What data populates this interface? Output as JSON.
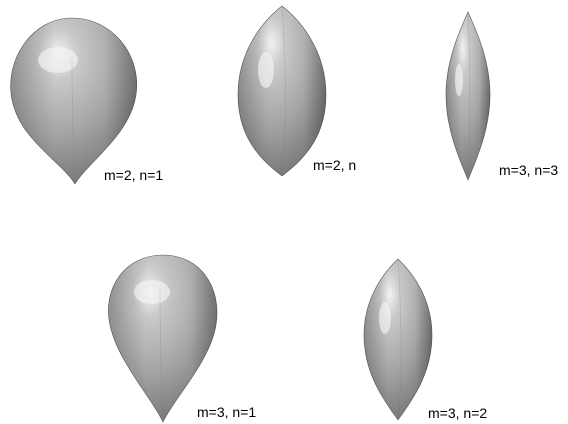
{
  "shading": {
    "highlight": "#f2f2f2",
    "light": "#c9c9c9",
    "mid": "#a6a6a6",
    "dark": "#707070",
    "edge": "#5a5a5a"
  },
  "shapes": [
    {
      "id": "m2-n1",
      "label": "m=2, n=1",
      "form": "teardrop"
    },
    {
      "id": "m2-n",
      "label": "m=2, n",
      "form": "lens"
    },
    {
      "id": "m3-n3",
      "label": "m=3, n=3",
      "form": "spindle"
    },
    {
      "id": "m3-n1",
      "label": "m=3, n=1",
      "form": "teardrop"
    },
    {
      "id": "m3-n2",
      "label": "m=3, n=2",
      "form": "lens"
    }
  ]
}
